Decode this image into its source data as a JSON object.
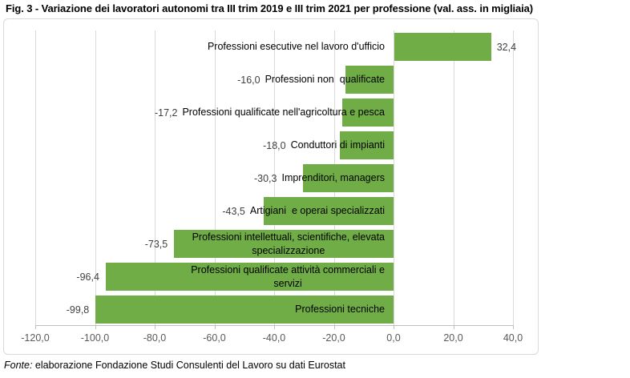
{
  "title": "Fig. 3 - Variazione dei lavoratori autonomi tra III trim 2019 e III trim 2021 per professione (val. ass. in migliaia)",
  "source": {
    "prefix": "Fonte:",
    "text": " elaborazione Fondazione Studi Consulenti del Lavoro su dati Eurostat"
  },
  "colors": {
    "bar": "#70AD47",
    "gridline": "#D9D9D9",
    "axis_line": "#BFBFBF",
    "axis_text": "#595959",
    "value_text": "#404040",
    "category_text": "#000000",
    "frame_border": "#D9D9D9"
  },
  "chart_data": {
    "type": "bar",
    "orientation": "horizontal",
    "title": "",
    "xlabel": "",
    "ylabel": "",
    "xlim": [
      -120,
      40
    ],
    "grid": true,
    "legend": false,
    "x_ticks": [
      {
        "value": -120,
        "label": "-120,0"
      },
      {
        "value": -100,
        "label": "-100,0"
      },
      {
        "value": -80,
        "label": "-80,0"
      },
      {
        "value": -60,
        "label": "-60,0"
      },
      {
        "value": -40,
        "label": "-40,0"
      },
      {
        "value": -20,
        "label": "-20,0"
      },
      {
        "value": 0,
        "label": "0,0"
      },
      {
        "value": 20,
        "label": "20,0"
      },
      {
        "value": 40,
        "label": "40,0"
      }
    ],
    "bars": [
      {
        "category": "Professioni esecutive nel lavoro d'ufficio",
        "label_lines": [
          "Professioni esecutive nel lavoro d'ufficio"
        ],
        "value": 32.4,
        "value_label": "32,4"
      },
      {
        "category": "Professioni non  qualificate",
        "label_lines": [
          "Professioni non  qualificate"
        ],
        "value": -16.0,
        "value_label": "-16,0"
      },
      {
        "category": "Professioni qualificate nell'agricoltura e pesca",
        "label_lines": [
          "Professioni qualificate nell'agricoltura e pesca"
        ],
        "value": -17.2,
        "value_label": "-17,2"
      },
      {
        "category": "Conduttori di impianti",
        "label_lines": [
          "Conduttori di impianti"
        ],
        "value": -18.0,
        "value_label": "-18,0"
      },
      {
        "category": "Imprenditori, managers",
        "label_lines": [
          "Imprenditori, managers"
        ],
        "value": -30.3,
        "value_label": "-30,3"
      },
      {
        "category": "Artigiani  e operai specializzati",
        "label_lines": [
          "Artigiani  e operai specializzati"
        ],
        "value": -43.5,
        "value_label": "-43,5"
      },
      {
        "category": "Professioni intellettuali, scientifiche, elevata specializzazione",
        "label_lines": [
          "Professioni intellettuali, scientifiche, elevata",
          "specializzazione"
        ],
        "value": -73.5,
        "value_label": "-73,5"
      },
      {
        "category": "Professioni qualificate attività commerciali e servizi",
        "label_lines": [
          "Professioni qualificate attività commerciali e",
          "servizi"
        ],
        "value": -96.4,
        "value_label": "-96,4"
      },
      {
        "category": "Professioni tecniche",
        "label_lines": [
          "Professioni tecniche"
        ],
        "value": -99.8,
        "value_label": "-99,8"
      }
    ]
  }
}
